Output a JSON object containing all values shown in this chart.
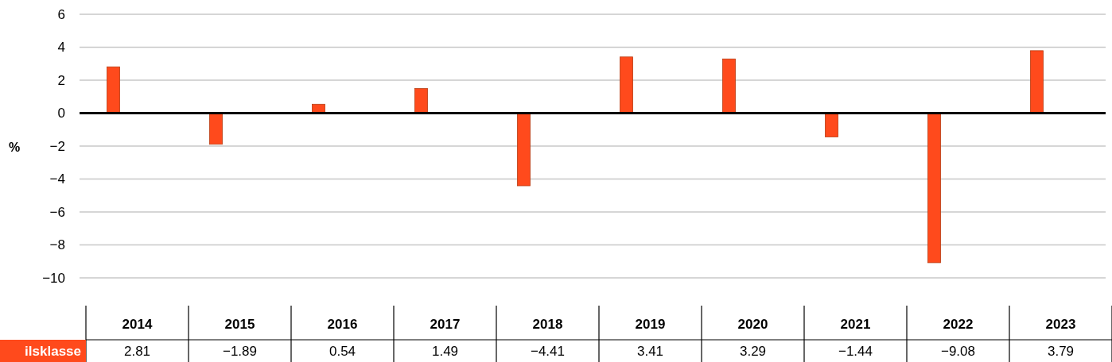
{
  "chart_data": {
    "type": "bar",
    "ylabel": "%",
    "categories": [
      "2014",
      "2015",
      "2016",
      "2017",
      "2018",
      "2019",
      "2020",
      "2021",
      "2022",
      "2023"
    ],
    "series": [
      {
        "name": "ilsklasse",
        "color": "#ff4a1c",
        "values": [
          2.81,
          -1.89,
          0.54,
          1.49,
          -4.41,
          3.41,
          3.29,
          -1.44,
          -9.08,
          3.79
        ]
      }
    ],
    "ylim": [
      -10,
      6
    ],
    "yticks": [
      -10,
      -8,
      -6,
      -4,
      -2,
      0,
      2,
      4,
      6
    ],
    "grid": "y",
    "data_labels": true
  }
}
